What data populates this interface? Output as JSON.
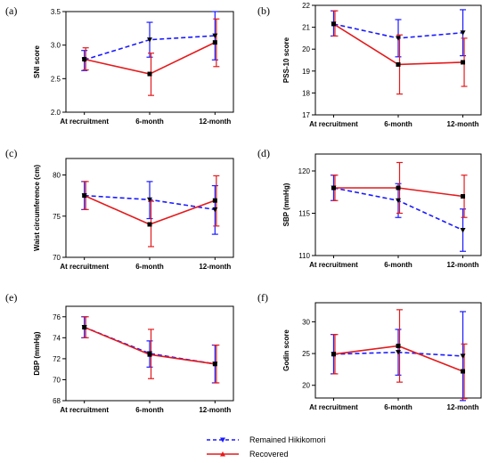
{
  "colors": {
    "remained": "#1a1aff",
    "recovered": "#e41a1c",
    "marker": "#000000"
  },
  "legend": {
    "position": "bottom-center",
    "entries": [
      {
        "label": "Remained Hikikomori",
        "style": "dashed",
        "marker": "triangle-down",
        "color": "#1a1aff"
      },
      {
        "label": "Recovered",
        "style": "solid",
        "marker": "triangle-up",
        "color": "#e41a1c"
      }
    ]
  },
  "chart_data": [
    {
      "id": "a",
      "panel_label": "(a)",
      "type": "line",
      "categories": [
        "At recruitment",
        "6-month",
        "12-month"
      ],
      "xlabel": "",
      "ylabel": "SNI score",
      "ylim": [
        2.0,
        3.5
      ],
      "yticks": [
        "2.0",
        "2.5",
        "3.0",
        "3.5"
      ],
      "yticks_values": [
        2.0,
        2.5,
        3.0,
        3.5
      ],
      "grid": false,
      "series": [
        {
          "name": "Remained Hikikomori",
          "values": [
            2.78,
            3.08,
            3.14
          ],
          "err_low": [
            2.62,
            2.82,
            2.78
          ],
          "err_high": [
            2.92,
            3.34,
            3.5
          ]
        },
        {
          "name": "Recovered",
          "values": [
            2.79,
            2.57,
            3.04
          ],
          "err_low": [
            2.63,
            2.25,
            2.68
          ],
          "err_high": [
            2.96,
            2.88,
            3.39
          ]
        }
      ]
    },
    {
      "id": "b",
      "panel_label": "(b)",
      "type": "line",
      "categories": [
        "At recruitment",
        "6-month",
        "12-month"
      ],
      "xlabel": "",
      "ylabel": "PSS-10 score",
      "ylim": [
        17,
        22
      ],
      "yticks": [
        "17",
        "18",
        "19",
        "20",
        "21",
        "22"
      ],
      "yticks_values": [
        17,
        18,
        19,
        20,
        21,
        22
      ],
      "grid": false,
      "series": [
        {
          "name": "Remained Hikikomori",
          "values": [
            21.15,
            20.5,
            20.75
          ],
          "err_low": [
            20.6,
            19.65,
            19.7
          ],
          "err_high": [
            21.75,
            21.35,
            21.8
          ]
        },
        {
          "name": "Recovered",
          "values": [
            21.15,
            19.3,
            19.4
          ],
          "err_low": [
            20.6,
            17.95,
            18.3
          ],
          "err_high": [
            21.75,
            20.65,
            20.5
          ]
        }
      ]
    },
    {
      "id": "c",
      "panel_label": "(c)",
      "type": "line",
      "categories": [
        "At recruitment",
        "6-month",
        "12-month"
      ],
      "xlabel": "",
      "ylabel": "Waist circumference (cm)",
      "ylim": [
        70,
        82
      ],
      "yticks": [
        "70",
        "75",
        "80"
      ],
      "yticks_values": [
        70,
        75,
        80
      ],
      "grid": false,
      "series": [
        {
          "name": "Remained Hikikomori",
          "values": [
            77.5,
            77.0,
            75.8
          ],
          "err_low": [
            75.8,
            74.7,
            72.8
          ],
          "err_high": [
            79.2,
            79.2,
            78.7
          ]
        },
        {
          "name": "Recovered",
          "values": [
            77.5,
            74.0,
            76.9
          ],
          "err_low": [
            75.8,
            71.3,
            73.8
          ],
          "err_high": [
            79.2,
            76.8,
            79.9
          ]
        }
      ]
    },
    {
      "id": "d",
      "panel_label": "(d)",
      "type": "line",
      "categories": [
        "At recruitment",
        "6-month",
        "12-month"
      ],
      "xlabel": "",
      "ylabel": "SBP (mmHg)",
      "ylim": [
        110,
        122
      ],
      "yticks": [
        "110",
        "115",
        "120"
      ],
      "yticks_values": [
        110,
        115,
        120
      ],
      "grid": false,
      "series": [
        {
          "name": "Remained Hikikomori",
          "values": [
            118.0,
            116.5,
            113.0
          ],
          "err_low": [
            116.5,
            114.5,
            110.5
          ],
          "err_high": [
            119.5,
            118.5,
            115.5
          ]
        },
        {
          "name": "Recovered",
          "values": [
            118.0,
            118.0,
            117.0
          ],
          "err_low": [
            116.5,
            115.0,
            114.5
          ],
          "err_high": [
            119.5,
            121.0,
            119.5
          ]
        }
      ]
    },
    {
      "id": "e",
      "panel_label": "(e)",
      "type": "line",
      "categories": [
        "At recruitment",
        "6-month",
        "12-month"
      ],
      "xlabel": "",
      "ylabel": "DBP (mmHg)",
      "ylim": [
        68,
        77
      ],
      "yticks": [
        "68",
        "70",
        "72",
        "74",
        "76"
      ],
      "yticks_values": [
        68,
        70,
        72,
        74,
        76
      ],
      "grid": false,
      "series": [
        {
          "name": "Remained Hikikomori",
          "values": [
            75.0,
            72.5,
            71.5
          ],
          "err_low": [
            74.0,
            71.2,
            69.7
          ],
          "err_high": [
            76.0,
            73.7,
            73.3
          ]
        },
        {
          "name": "Recovered",
          "values": [
            75.0,
            72.4,
            71.5
          ],
          "err_low": [
            74.0,
            70.1,
            69.7
          ],
          "err_high": [
            76.0,
            74.8,
            73.3
          ]
        }
      ]
    },
    {
      "id": "f",
      "panel_label": "(f)",
      "type": "line",
      "categories": [
        "At recruitment",
        "6-month",
        "12-month"
      ],
      "xlabel": "",
      "ylabel": "Godin score",
      "ylim": [
        18,
        33
      ],
      "yticks": [
        "20",
        "25",
        "30"
      ],
      "yticks_values": [
        20,
        25,
        30
      ],
      "grid": false,
      "series": [
        {
          "name": "Remained Hikikomori",
          "values": [
            24.9,
            25.2,
            24.6
          ],
          "err_low": [
            21.8,
            21.6,
            17.6
          ],
          "err_high": [
            28.0,
            28.8,
            31.6
          ]
        },
        {
          "name": "Recovered",
          "values": [
            24.9,
            26.2,
            22.2
          ],
          "err_low": [
            21.8,
            20.5,
            17.9
          ],
          "err_high": [
            28.0,
            31.9,
            26.5
          ]
        }
      ]
    }
  ]
}
